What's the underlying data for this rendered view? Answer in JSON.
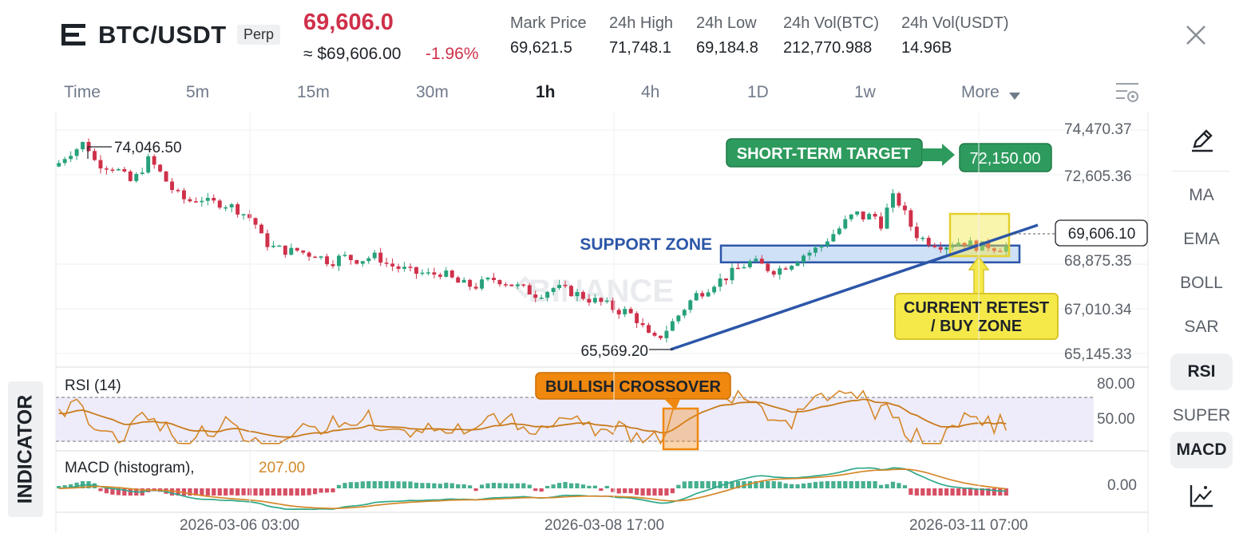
{
  "header": {
    "symbol": "BTC/USDT",
    "badge": "Perp",
    "last_price": "69,606.0",
    "approx_usd": "≈ $69,606.00",
    "change_pct": "-1.96%",
    "stats": [
      {
        "label": "Mark Price",
        "value": "69,621.5"
      },
      {
        "label": "24h High",
        "value": "71,748.1"
      },
      {
        "label": "24h Low",
        "value": "69,184.8"
      },
      {
        "label": "24h Vol(BTC)",
        "value": "212,770.988"
      },
      {
        "label": "24h Vol(USDT)",
        "value": "14.96B"
      }
    ]
  },
  "timeframes": {
    "items": [
      "Time",
      "5m",
      "15m",
      "30m",
      "1h",
      "4h",
      "1D",
      "1w",
      "More"
    ],
    "active": "1h"
  },
  "sidebar": {
    "items": [
      "MA",
      "EMA",
      "BOLL",
      "SAR",
      "RSI",
      "SUPER",
      "MACD"
    ],
    "active": [
      "RSI",
      "MACD"
    ]
  },
  "indicator_tab": "INDICATOR",
  "watermark": "BINANCE",
  "chart": {
    "price_axis": [
      "74,470.37",
      "72,605.36",
      "69,606.10",
      "68,875.35",
      "67,010.34",
      "65,145.33"
    ],
    "current_price_label": "69,606.10",
    "high_label": "74,046.50",
    "low_label": "65,569.20",
    "time_axis": [
      "2026-03-06 03:00",
      "2026-03-08 17:00",
      "2026-03-11 07:00"
    ],
    "annotations": {
      "support_zone": "SUPPORT ZONE",
      "short_term_target": "SHORT-TERM TARGET",
      "target_price": "72,150.00",
      "retest_line1": "CURRENT RETEST",
      "retest_line2": "/ BUY ZONE",
      "bullish_crossover": "BULLISH CROSSOVER"
    },
    "rsi": {
      "label": "RSI (14)",
      "axis": [
        "80.00",
        "50.00"
      ]
    },
    "macd": {
      "label": "MACD (histogram),",
      "value": "207.00",
      "axis": [
        "0.00"
      ]
    }
  },
  "colors": {
    "up": "#26a17b",
    "down": "#cf304a",
    "support": "#2c56a8",
    "target": "#2e9b5e",
    "retest": "#f5e94a",
    "crossover": "#f0880f",
    "rsi_line": "#d5882a"
  },
  "chart_data": {
    "type": "candlestick",
    "interval": "1h",
    "close_series": [
      73100,
      73500,
      73700,
      74000,
      73200,
      73000,
      72950,
      72700,
      72300,
      72600,
      73250,
      72900,
      72400,
      71900,
      71600,
      71500,
      71650,
      71400,
      71450,
      71350,
      71200,
      70950,
      70700,
      69900,
      69600,
      69500,
      69400,
      69450,
      69300,
      69300,
      69050,
      69000,
      69200,
      69100,
      69050,
      69150,
      69200,
      68900,
      68750,
      68650,
      68500,
      68500,
      68400,
      68550,
      68350,
      68100,
      68000,
      67950,
      68100,
      68250,
      68200,
      68050,
      67900,
      67750,
      67600,
      67750,
      67900,
      67800,
      67700,
      67550,
      67400,
      67300,
      67150,
      66950,
      66900,
      66700,
      66200,
      65650,
      65900,
      66300,
      66750,
      67200,
      67600,
      67800,
      68100,
      68250,
      68500,
      68750,
      68950,
      68900,
      68700,
      68600,
      68800,
      69000,
      69250,
      69400,
      69600,
      70000,
      70300,
      70700,
      71000,
      70800,
      70950,
      70500,
      71700,
      71400,
      70600,
      70050,
      69850,
      69750,
      69650,
      69750,
      69850,
      69700,
      69600,
      69650,
      69550,
      69606
    ],
    "high_label": 74046.5,
    "low_label": 65569.2,
    "current_price": 69606.1,
    "target": 72150.0,
    "support_zone": [
      68950,
      69650
    ],
    "price_axis": [
      74470.37,
      72605.36,
      68875.35,
      67010.34,
      65145.33
    ],
    "rsi_period": 14,
    "rsi_bands": [
      30,
      70
    ],
    "rsi_axis": [
      80,
      50
    ],
    "macd_value": 207.0
  }
}
